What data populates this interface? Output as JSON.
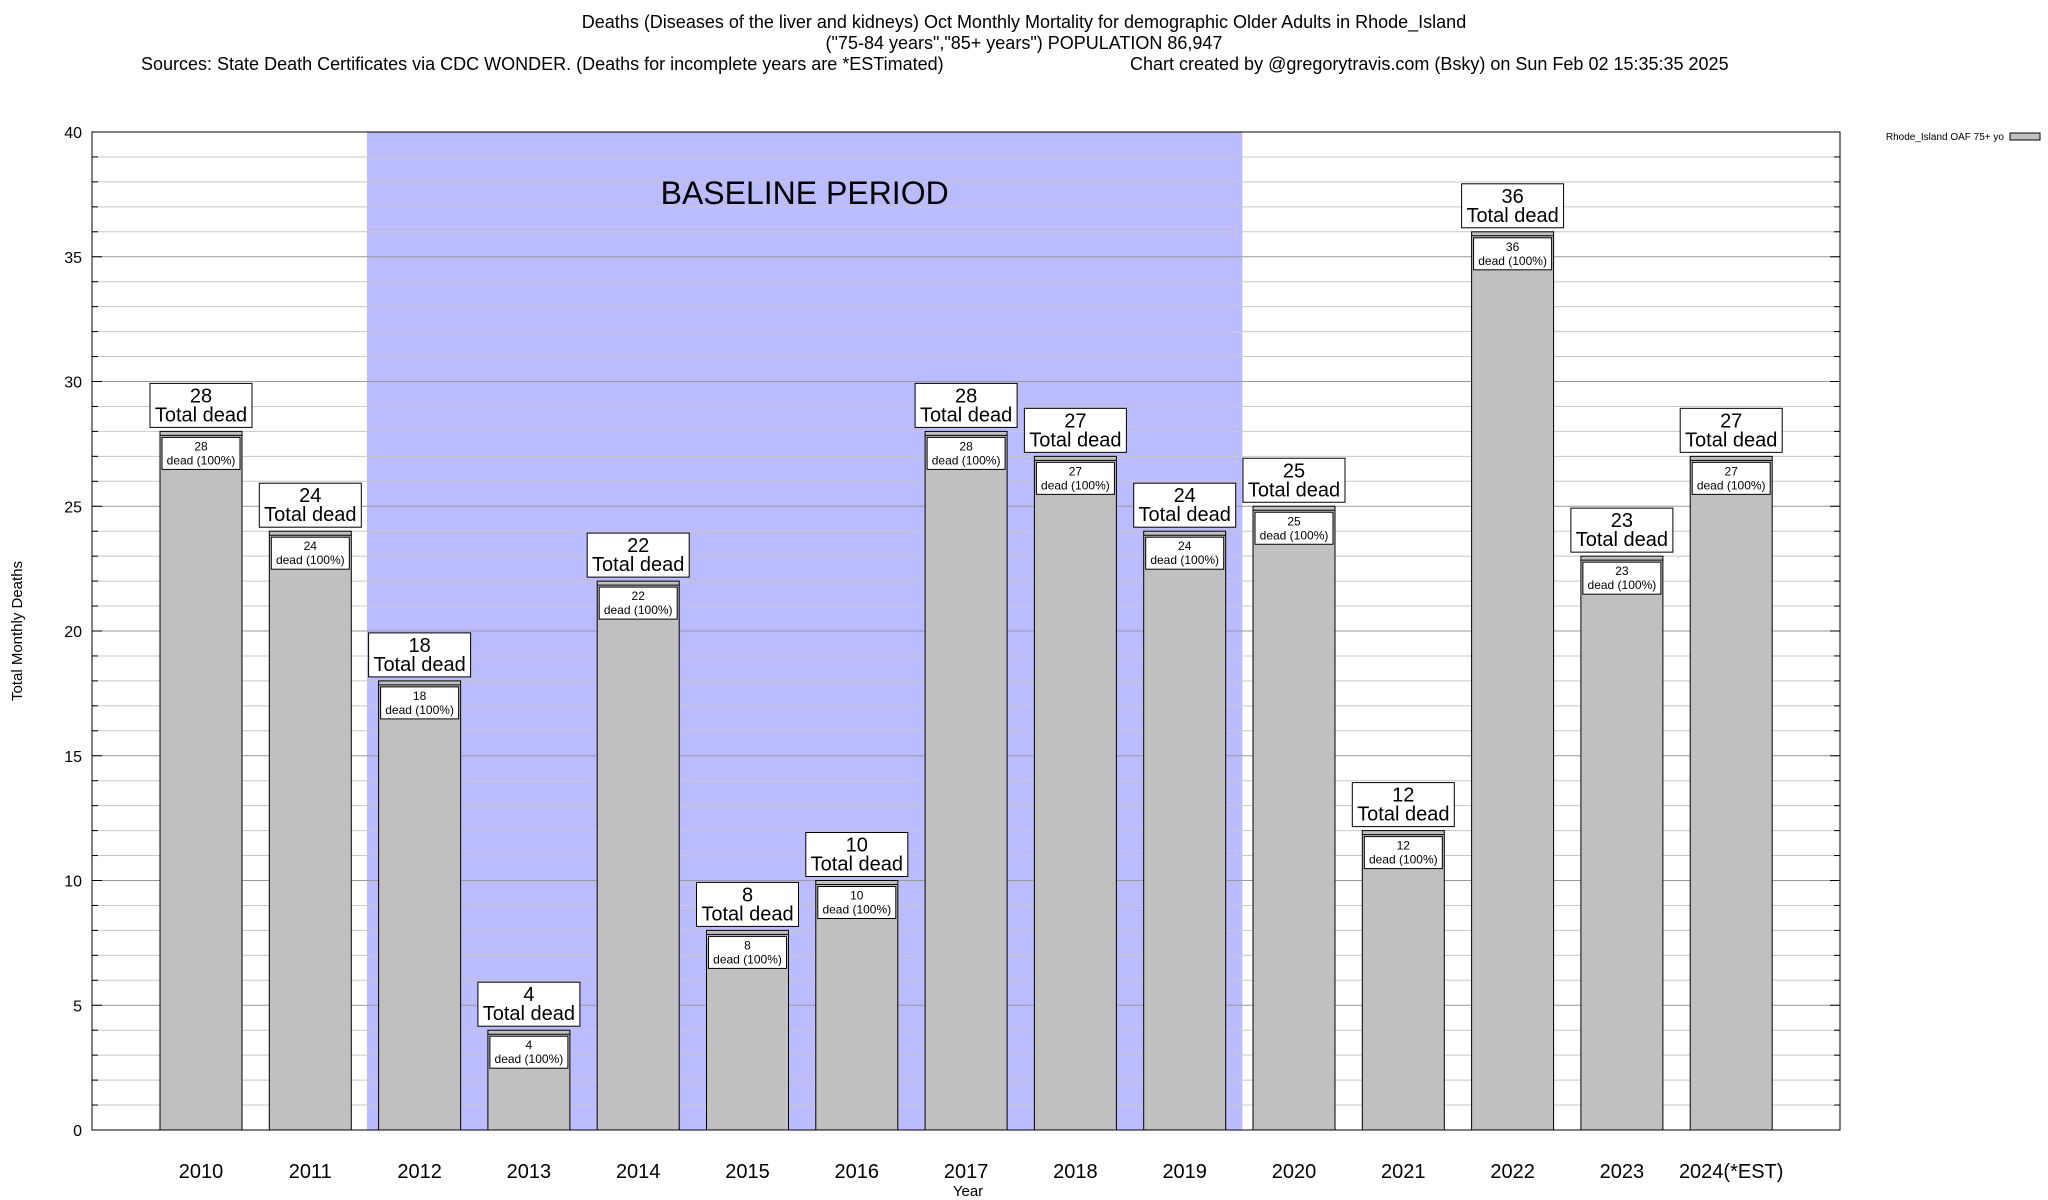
{
  "header": {
    "line1": "Deaths (Diseases of the liver and kidneys) Oct Monthly Mortality for demographic Older Adults in Rhode_Island",
    "line2": "(\"75-84 years\",\"85+ years\") POPULATION 86,947",
    "line3_left": "Sources: State Death Certificates via CDC WONDER. (Deaths for incomplete years are *ESTimated)",
    "line3_right": "Chart created by @gregorytravis.com (Bsky) on Sun Feb 02 15:35:35 2025"
  },
  "chart_data": {
    "type": "bar",
    "xlabel": "Year",
    "ylabel": "Total Monthly Deaths",
    "ylim": [
      0,
      40
    ],
    "y_major_ticks": [
      0,
      5,
      10,
      15,
      20,
      25,
      30,
      35,
      40
    ],
    "y_minor_step": 1,
    "grid": true,
    "legend_position": "top-right",
    "categories": [
      "2010",
      "2011",
      "2012",
      "2013",
      "2014",
      "2015",
      "2016",
      "2017",
      "2018",
      "2019",
      "2020",
      "2021",
      "2022",
      "2023",
      "2024(*EST)"
    ],
    "series": [
      {
        "name": "Rhode_Island OAF 75+ yo",
        "values": [
          28,
          24,
          18,
          4,
          22,
          8,
          10,
          28,
          27,
          24,
          25,
          12,
          36,
          23,
          27
        ]
      }
    ],
    "bar_label_suffix": "Total dead",
    "inner_label_suffix": "dead (100%)",
    "annotation": {
      "text": "BASELINE PERIOD",
      "from_category": "2012",
      "to_category": "2019"
    },
    "colors": {
      "bar": "#c0c0c0",
      "baseline_band": "#bbbbff"
    }
  }
}
